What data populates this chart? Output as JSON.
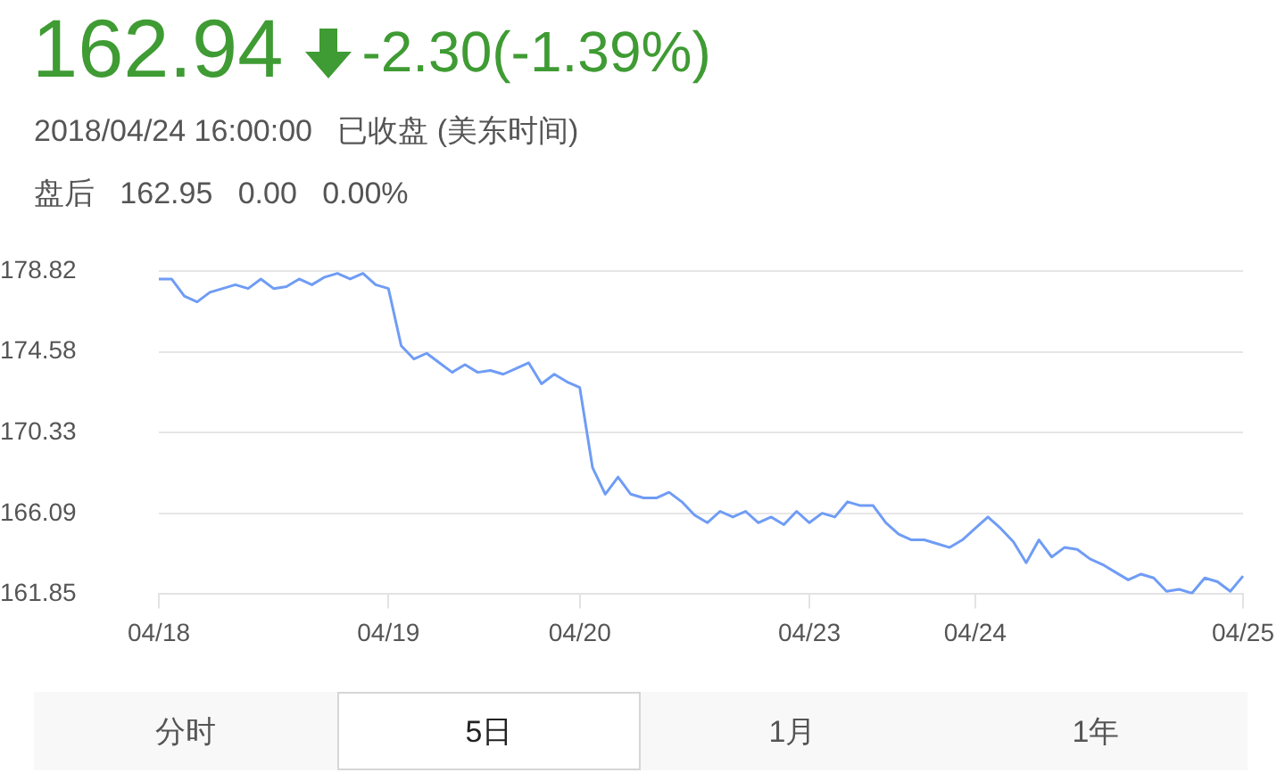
{
  "chart_data": {
    "type": "line",
    "title": "162.94",
    "subtitle": "-2.30(-1.39%)",
    "annotations": [
      "2018/04/24 16:00:00   已收盘 (美东时间)",
      "盘后   162.95   0.00   0.00%",
      "分时",
      "5日",
      "1月",
      "1年"
    ],
    "categories": [
      "04/18",
      null,
      null,
      null,
      null,
      null,
      null,
      null,
      null,
      null,
      null,
      null,
      null,
      null,
      null,
      null,
      null,
      null,
      "04/19",
      null,
      null,
      null,
      null,
      null,
      null,
      null,
      null,
      null,
      null,
      null,
      null,
      null,
      null,
      "04/20",
      null,
      null,
      null,
      null,
      null,
      null,
      null,
      null,
      null,
      null,
      null,
      null,
      null,
      null,
      null,
      null,
      null,
      "04/23",
      null,
      null,
      null,
      null,
      null,
      null,
      null,
      null,
      null,
      null,
      null,
      null,
      "04/24",
      null,
      null,
      null,
      null,
      null,
      null,
      null,
      null,
      null,
      null,
      null,
      null,
      null,
      null,
      null,
      null,
      null,
      null,
      null,
      null,
      "04/25"
    ],
    "series": [
      {
        "color": "#6f9cf5",
        "values": [
          178.4,
          178.4,
          177.5,
          177.2,
          177.7,
          177.9,
          178.1,
          177.9,
          178.4,
          177.9,
          178.0,
          178.4,
          178.1,
          178.5,
          178.7,
          178.4,
          178.7,
          178.1,
          177.9,
          174.9,
          174.2,
          174.5,
          174.0,
          173.5,
          173.9,
          173.5,
          173.6,
          173.4,
          173.7,
          174.0,
          172.9,
          173.4,
          173.0,
          172.7,
          168.5,
          167.1,
          168.0,
          167.1,
          166.9,
          166.9,
          167.2,
          166.7,
          166.0,
          165.6,
          166.2,
          165.9,
          166.2,
          165.6,
          165.9,
          165.5,
          166.2,
          165.6,
          166.1,
          165.9,
          166.7,
          166.5,
          166.5,
          165.6,
          165.0,
          164.7,
          164.7,
          164.5,
          164.3,
          164.7,
          165.3,
          165.9,
          165.3,
          164.6,
          163.5,
          164.7,
          163.8,
          164.3,
          164.2,
          163.7,
          163.4,
          163.0,
          162.6,
          162.9,
          162.7,
          162.0,
          162.1,
          161.9,
          162.7,
          162.5,
          162.0,
          162.8
        ]
      }
    ],
    "ylim": [
      161.85,
      178.82
    ],
    "yticks": [
      161.85,
      166.09,
      170.33,
      174.58,
      178.82
    ],
    "grid": "y",
    "marker": "none",
    "line_style": "solid"
  }
}
